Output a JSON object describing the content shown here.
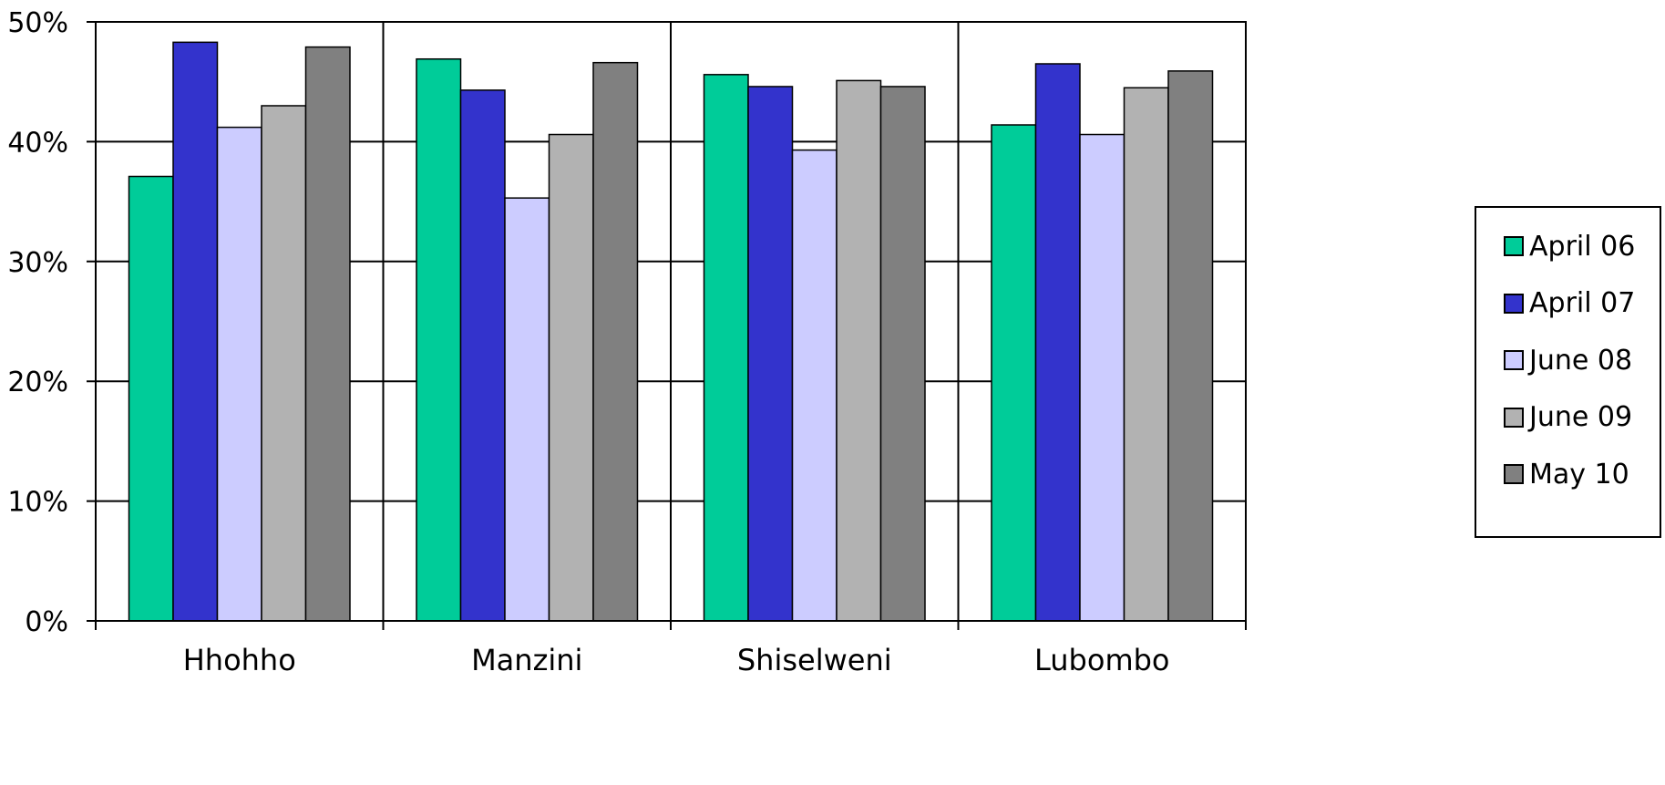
{
  "chart_data": {
    "type": "bar",
    "title": "",
    "xlabel": "",
    "ylabel": "",
    "ylim": [
      0,
      50
    ],
    "y_ticks": [
      "0%",
      "10%",
      "20%",
      "30%",
      "40%",
      "50%"
    ],
    "y_tick_values": [
      0,
      10,
      20,
      30,
      40,
      50
    ],
    "grid": "horizontal major gridlines and category separators",
    "legend_position": "right",
    "categories": [
      "Hhohho",
      "Manzini",
      "Shiselweni",
      "Lubombo"
    ],
    "series": [
      {
        "name": "April 06",
        "color": "#00CC99",
        "values": [
          37.1,
          46.9,
          45.6,
          41.4
        ]
      },
      {
        "name": "April 07",
        "color": "#3333CC",
        "values": [
          48.3,
          44.3,
          44.6,
          46.5
        ]
      },
      {
        "name": "June 08",
        "color": "#CCCCFF",
        "values": [
          41.2,
          35.3,
          39.3,
          40.6
        ]
      },
      {
        "name": "June 09",
        "color": "#B2B2B2",
        "values": [
          43.0,
          40.6,
          45.1,
          44.5
        ]
      },
      {
        "name": "May 10",
        "color": "#808080",
        "values": [
          47.9,
          46.6,
          44.6,
          45.9
        ]
      }
    ]
  }
}
